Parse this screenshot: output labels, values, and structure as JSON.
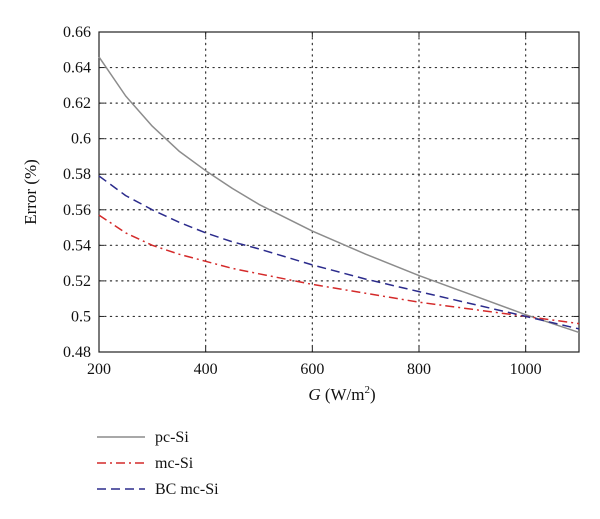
{
  "chart_data": {
    "type": "line",
    "title": "",
    "ylabel": "Error (%)",
    "xlabel_prefix": "G",
    "xlabel_units": " (W/m",
    "xlabel_sup": "2",
    "xlabel_close": ")",
    "xlim": [
      200,
      1100
    ],
    "ylim": [
      0.48,
      0.66
    ],
    "xticks": [
      200,
      400,
      600,
      800,
      1000
    ],
    "xtick_labels": [
      "200",
      "400",
      "600",
      "800",
      "1000"
    ],
    "yticks": [
      0.48,
      0.5,
      0.52,
      0.54,
      0.56,
      0.58,
      0.6,
      0.62,
      0.64,
      0.66
    ],
    "ytick_labels": [
      "0.48",
      "0.5",
      "0.52",
      "0.54",
      "0.56",
      "0.58",
      "0.6",
      "0.62",
      "0.64",
      "0.66"
    ],
    "grid": true,
    "legend_placement": "bottom-left, below the plot",
    "series": [
      {
        "name": "pc-Si",
        "color": "#8c8c8c",
        "style": "solid",
        "x": [
          200,
          250,
          300,
          350,
          400,
          450,
          500,
          600,
          700,
          800,
          900,
          1000,
          1100
        ],
        "y": [
          0.646,
          0.624,
          0.607,
          0.593,
          0.582,
          0.572,
          0.563,
          0.548,
          0.535,
          0.523,
          0.512,
          0.501,
          0.491
        ]
      },
      {
        "name": "mc-Si",
        "color": "#d42a2a",
        "style": "dashdot",
        "x": [
          200,
          250,
          300,
          350,
          400,
          450,
          500,
          600,
          700,
          800,
          900,
          1000,
          1100
        ],
        "y": [
          0.557,
          0.547,
          0.54,
          0.535,
          0.531,
          0.527,
          0.524,
          0.518,
          0.513,
          0.508,
          0.504,
          0.5,
          0.496
        ]
      },
      {
        "name": "BC mc-Si",
        "color": "#2b2b8c",
        "style": "dashed",
        "x": [
          200,
          250,
          300,
          350,
          400,
          450,
          500,
          600,
          700,
          800,
          900,
          1000,
          1100
        ],
        "y": [
          0.579,
          0.568,
          0.56,
          0.553,
          0.547,
          0.542,
          0.538,
          0.529,
          0.521,
          0.514,
          0.507,
          0.5,
          0.493
        ]
      }
    ]
  }
}
